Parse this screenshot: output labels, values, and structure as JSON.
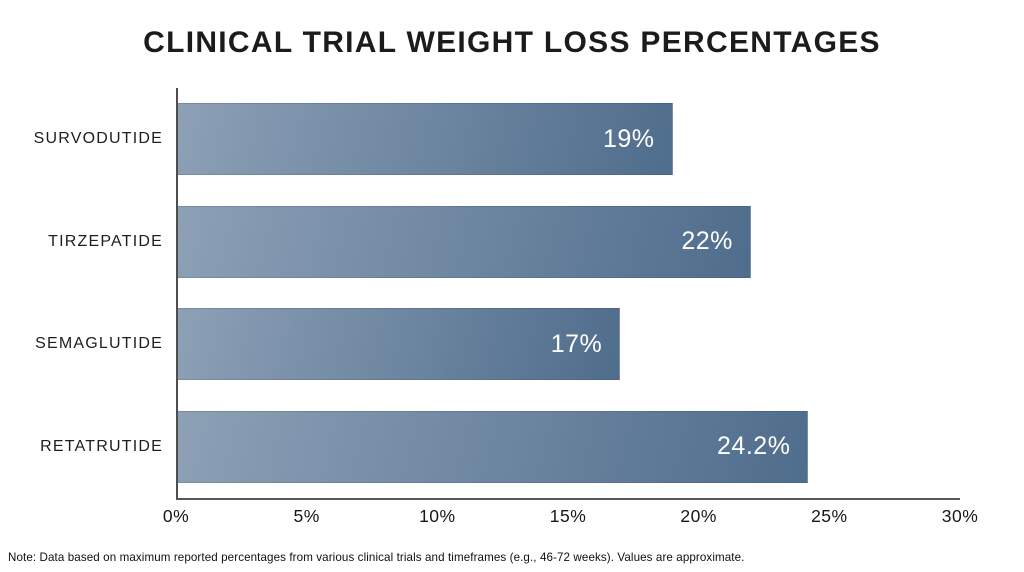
{
  "note": "Note: Data based on maximum reported percentages from various clinical trials and timeframes (e.g., 46-72 weeks). Values are approximate.",
  "chart_data": {
    "type": "bar",
    "orientation": "horizontal",
    "title": "CLINICAL TRIAL WEIGHT LOSS PERCENTAGES",
    "categories": [
      "SURVODUTIDE",
      "TIRZEPATIDE",
      "SEMAGLUTIDE",
      "RETATRUTIDE"
    ],
    "values": [
      19,
      22,
      17,
      24.2
    ],
    "value_labels": [
      "19%",
      "22%",
      "17%",
      "24.2%"
    ],
    "xlabel": "",
    "ylabel": "",
    "xlim": [
      0,
      30
    ],
    "x_ticks": [
      "0%",
      "5%",
      "10%",
      "15%",
      "20%",
      "25%",
      "30%"
    ],
    "grid": false,
    "legend": false,
    "colors": {
      "bar_gradient_start": "#8da0b6",
      "bar_gradient_end": "#4f6d8c",
      "value_label": "#ffffff",
      "axis_line": "#4e4e4e",
      "text": "#1b1b1b"
    }
  }
}
